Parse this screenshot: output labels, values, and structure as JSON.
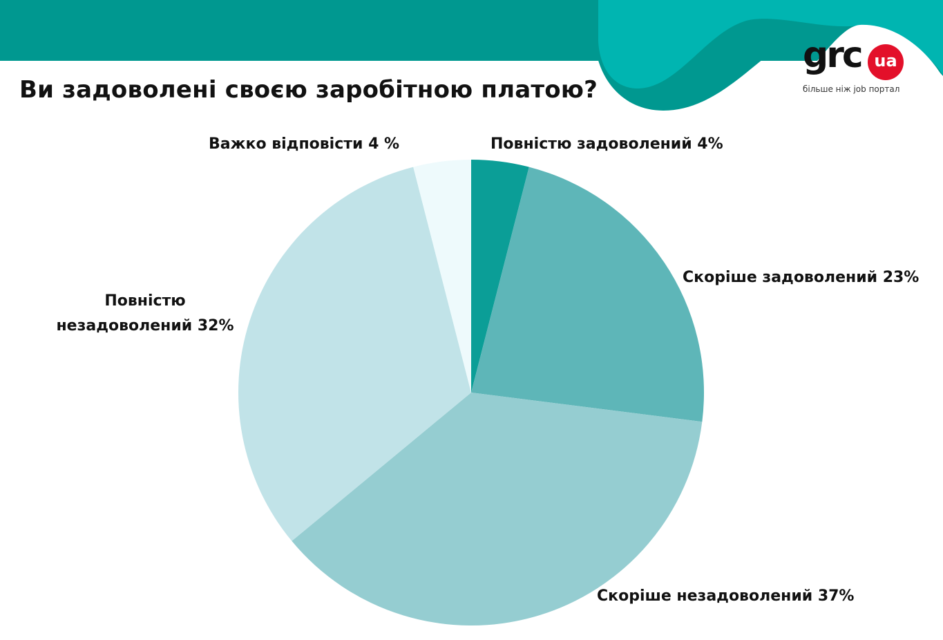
{
  "header": {
    "band_color": "#009890",
    "wave_colors": [
      "#00b5b1",
      "#009890"
    ]
  },
  "title": "Ви задоволені своєю заробітною платою?",
  "logo": {
    "text": "grc",
    "badge": "ua",
    "tagline": "більше ніж job портал",
    "badge_color": "#e3102a"
  },
  "chart_data": {
    "type": "pie",
    "title": "Ви задоволені своєю заробітною платою?",
    "start_angle": "12 o'clock",
    "direction": "clockwise",
    "slices": [
      {
        "name": "Повністю задоволений",
        "value": 4,
        "label": "Повністю задоволений 4%",
        "color": "#0b9e97"
      },
      {
        "name": "Скоріше задоволений",
        "value": 23,
        "label": "Скоріше задоволений 23%",
        "color": "#5eb6b8"
      },
      {
        "name": "Скоріше незадоволений",
        "value": 37,
        "label": "Скоріше незадоволений 37%",
        "color": "#95cdd1"
      },
      {
        "name": "Повністю незадоволений",
        "value": 32,
        "label": "Повністю незадоволений 32%",
        "color": "#c1e3e8"
      },
      {
        "name": "Важко відповісти",
        "value": 4,
        "label": "Важко відповісти 4 %",
        "color": "#eefafc"
      }
    ]
  }
}
